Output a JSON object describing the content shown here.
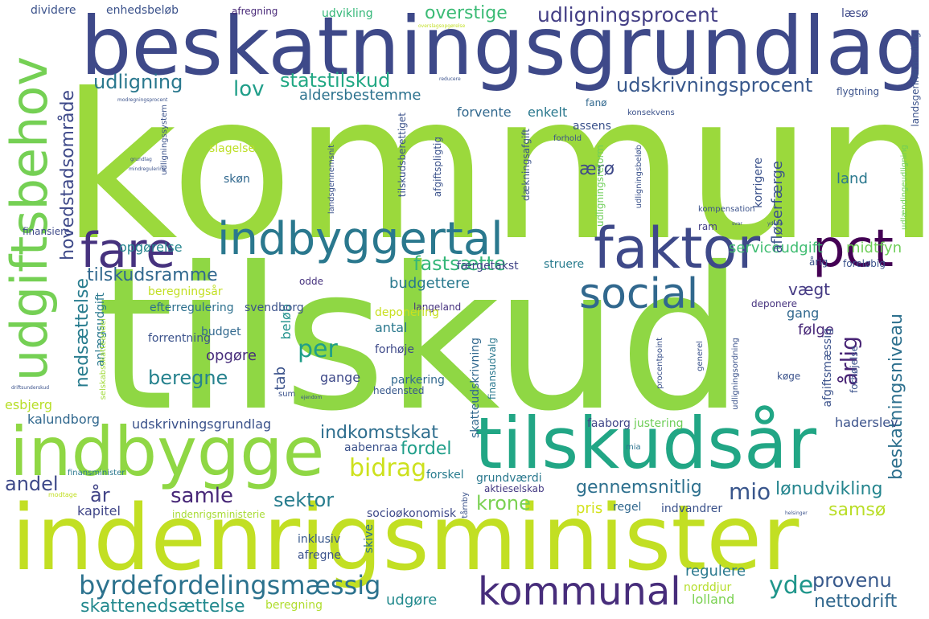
{
  "words": [
    {
      "text": "kommune",
      "color": "#9bd93c"
    },
    {
      "text": "tilskud",
      "color": "#8fd744"
    },
    {
      "text": "beskatningsgrundlag",
      "color": "#3e4989"
    },
    {
      "text": "indenrigsminister",
      "color": "#c2df23"
    },
    {
      "text": "indbygge",
      "color": "#8fd744"
    },
    {
      "text": "tilskudsår",
      "color": "#21a685"
    },
    {
      "text": "udgiftsbehov",
      "color": "#75d054"
    },
    {
      "text": "indbyggertal",
      "color": "#2a788e"
    },
    {
      "text": "faktor",
      "color": "#3e4989"
    },
    {
      "text": "fare",
      "color": "#46327e"
    },
    {
      "text": "pct",
      "color": "#440154"
    },
    {
      "text": "social",
      "color": "#31688e"
    },
    {
      "text": "kommunal",
      "color": "#472d7b"
    },
    {
      "text": "byrdefordelingsmæssig",
      "color": "#2c728e"
    },
    {
      "text": "udligningsprocent",
      "color": "#433e85"
    },
    {
      "text": "overstige",
      "color": "#3bbb75"
    },
    {
      "text": "udskrivningsprocent",
      "color": "#38588c"
    },
    {
      "text": "statstilskud",
      "color": "#22a884"
    },
    {
      "text": "udligning",
      "color": "#2a788e"
    },
    {
      "text": "lov",
      "color": "#1f9e89"
    },
    {
      "text": "aldersbestemme",
      "color": "#2c728e"
    },
    {
      "text": "forvente",
      "color": "#31688e"
    },
    {
      "text": "enkelt",
      "color": "#2a788e"
    },
    {
      "text": "hovedstadsområde",
      "color": "#3e4989"
    },
    {
      "text": "tilskudsramme",
      "color": "#31688e"
    },
    {
      "text": "fastsætte",
      "color": "#35b779"
    },
    {
      "text": "budgettere",
      "color": "#29798e"
    },
    {
      "text": "per",
      "color": "#1f9e89"
    },
    {
      "text": "beregne",
      "color": "#26828e"
    },
    {
      "text": "nedsættelse",
      "color": "#287c8e"
    },
    {
      "text": "bidrag",
      "color": "#cde11d"
    },
    {
      "text": "samle",
      "color": "#482878"
    },
    {
      "text": "andel",
      "color": "#3e4989"
    },
    {
      "text": "år",
      "color": "#414487"
    },
    {
      "text": "krone",
      "color": "#7ad151"
    },
    {
      "text": "mio",
      "color": "#39568c"
    },
    {
      "text": "lønudvikling",
      "color": "#25858e"
    },
    {
      "text": "gennemsnitlig",
      "color": "#2d708e"
    },
    {
      "text": "sektor",
      "color": "#287d8e"
    },
    {
      "text": "provenu",
      "color": "#38598c"
    },
    {
      "text": "yde",
      "color": "#1f968b"
    },
    {
      "text": "nettodrift",
      "color": "#31688e"
    },
    {
      "text": "skattenedsættelse",
      "color": "#23898e"
    },
    {
      "text": "beskatningsniveau",
      "color": "#2d708e"
    },
    {
      "text": "årlig",
      "color": "#482475"
    },
    {
      "text": "serviceudgift",
      "color": "#40bd72"
    },
    {
      "text": "midtfyn",
      "color": "#6ece58"
    },
    {
      "text": "indkomstskat",
      "color": "#2e6e8e"
    },
    {
      "text": "fordel",
      "color": "#1f9e89"
    },
    {
      "text": "udskrivningsgrundlag",
      "color": "#3b528b"
    },
    {
      "text": "samsø",
      "color": "#bade28"
    },
    {
      "text": "regulere",
      "color": "#2a788e"
    },
    {
      "text": "udgøre",
      "color": "#238a8d"
    },
    {
      "text": "lolland",
      "color": "#7ad151"
    },
    {
      "text": "norddjur",
      "color": "#b5de2b"
    },
    {
      "text": "opgørelse",
      "color": "#25858e"
    },
    {
      "text": "færgetakst",
      "color": "#414487"
    },
    {
      "text": "afløserfærge",
      "color": "#3b528b"
    },
    {
      "text": "land",
      "color": "#2a788e"
    },
    {
      "text": "ærø",
      "color": "#3e4989"
    },
    {
      "text": "skøn",
      "color": "#31688e"
    },
    {
      "text": "slagelse",
      "color": "#bddf26"
    },
    {
      "text": "assens",
      "color": "#3b528b"
    },
    {
      "text": "fanø",
      "color": "#31688e"
    },
    {
      "text": "struere",
      "color": "#287c8e"
    },
    {
      "text": "vægt",
      "color": "#443983"
    },
    {
      "text": "gang",
      "color": "#31688e"
    },
    {
      "text": "følge",
      "color": "#482878"
    },
    {
      "text": "tab",
      "color": "#3b528b"
    },
    {
      "text": "antal",
      "color": "#2a788e"
    },
    {
      "text": "gange",
      "color": "#3e4989"
    },
    {
      "text": "beløb",
      "color": "#21918c"
    },
    {
      "text": "budget",
      "color": "#31688e"
    },
    {
      "text": "opgøre",
      "color": "#472d7b"
    },
    {
      "text": "efterregulering",
      "color": "#2d708e"
    },
    {
      "text": "svendborg",
      "color": "#3b528b"
    },
    {
      "text": "langeland",
      "color": "#46327e"
    },
    {
      "text": "forrentning",
      "color": "#3b528b"
    },
    {
      "text": "forhøje",
      "color": "#3e4989"
    },
    {
      "text": "parkering",
      "color": "#31688e"
    },
    {
      "text": "hedensted",
      "color": "#38588c"
    },
    {
      "text": "kalundborg",
      "color": "#31688e"
    },
    {
      "text": "esbjerg",
      "color": "#b8de29"
    },
    {
      "text": "aabenraa",
      "color": "#3b528b"
    },
    {
      "text": "forskel",
      "color": "#287c8e"
    },
    {
      "text": "aktieselskab",
      "color": "#443983"
    },
    {
      "text": "grundværdi",
      "color": "#2a788e"
    },
    {
      "text": "kapitel",
      "color": "#404688"
    },
    {
      "text": "socioøkonomisk",
      "color": "#3e4989"
    },
    {
      "text": "regel",
      "color": "#31688e"
    },
    {
      "text": "indvandrer",
      "color": "#3b528b"
    },
    {
      "text": "pris",
      "color": "#d2e21b"
    },
    {
      "text": "indenrigsministerie",
      "color": "#a8db34"
    },
    {
      "text": "inklusiv",
      "color": "#38588c"
    },
    {
      "text": "afregne",
      "color": "#3b528b"
    },
    {
      "text": "skive",
      "color": "#2d708e"
    },
    {
      "text": "beregning",
      "color": "#b0dd2f"
    },
    {
      "text": "faaborg",
      "color": "#404688"
    },
    {
      "text": "justering",
      "color": "#6ece58"
    },
    {
      "text": "haderslev",
      "color": "#3b528b"
    },
    {
      "text": "mia",
      "color": "#2c728e"
    },
    {
      "text": "køge",
      "color": "#3b528b"
    },
    {
      "text": "dividere",
      "color": "#3b528b"
    },
    {
      "text": "enhedsbeløb",
      "color": "#3b528b"
    },
    {
      "text": "afregning",
      "color": "#482878"
    },
    {
      "text": "udvikling",
      "color": "#35b779"
    },
    {
      "text": "læsø",
      "color": "#3e4989"
    },
    {
      "text": "odde",
      "color": "#46327e"
    },
    {
      "text": "deponering",
      "color": "#c8e020"
    },
    {
      "text": "deponere",
      "color": "#46327e"
    },
    {
      "text": "beregningsår",
      "color": "#c2df23"
    },
    {
      "text": "finansiere",
      "color": "#3e4989"
    },
    {
      "text": "finansminister",
      "color": "#2a788e"
    },
    {
      "text": "årig",
      "color": "#3b528b"
    },
    {
      "text": "foreløbig",
      "color": "#3b528b"
    },
    {
      "text": "korrigere",
      "color": "#3b528b"
    },
    {
      "text": "ram",
      "color": "#433e85"
    },
    {
      "text": "kompensation",
      "color": "#3b528b"
    },
    {
      "text": "forhold",
      "color": "#3b528b"
    },
    {
      "text": "konsekvens",
      "color": "#3b528b"
    },
    {
      "text": "flygtning",
      "color": "#3b528b"
    },
    {
      "text": "anlægsudgift",
      "color": "#2a788e"
    },
    {
      "text": "afgiftsmæssig",
      "color": "#3b528b"
    },
    {
      "text": "forhøjelse",
      "color": "#3b528b"
    },
    {
      "text": "skatteudskrivning",
      "color": "#31688e"
    },
    {
      "text": "finansudvalg",
      "color": "#2a788e"
    },
    {
      "text": "generel",
      "color": "#3b528b"
    },
    {
      "text": "procentpoint",
      "color": "#3b528b"
    },
    {
      "text": "udligningsordning",
      "color": "#3b528b"
    },
    {
      "text": "landsgennemsnit",
      "color": "#3b528b"
    },
    {
      "text": "landsgennemsnitlig",
      "color": "#3b528b"
    },
    {
      "text": "udligningsreform",
      "color": "#6ece58"
    },
    {
      "text": "dækningsafgift",
      "color": "#3b528b"
    },
    {
      "text": "afgiftspligtig",
      "color": "#3b528b"
    },
    {
      "text": "tilskudsberettiget",
      "color": "#3b528b"
    },
    {
      "text": "udligningsbeløb",
      "color": "#3b528b"
    },
    {
      "text": "udligningssystem",
      "color": "#3b528b"
    },
    {
      "text": "driftsunderskud",
      "color": "#3b528b"
    },
    {
      "text": "selskabsskatteandel",
      "color": "#a0da39"
    },
    {
      "text": "tårnby",
      "color": "#3b528b"
    },
    {
      "text": "helsinger",
      "color": "#3b528b"
    },
    {
      "text": "sum",
      "color": "#3b528b"
    },
    {
      "text": "ejendom",
      "color": "#3b528b"
    },
    {
      "text": "modtage",
      "color": "#c2df23"
    },
    {
      "text": "udlændingeudligning",
      "color": "#6ece58"
    },
    {
      "text": "ydelse",
      "color": "#3b528b"
    },
    {
      "text": "svar",
      "color": "#3b528b"
    },
    {
      "text": "modregningsprocent",
      "color": "#3b528b"
    },
    {
      "text": "reducere",
      "color": "#3b528b"
    },
    {
      "text": "grundlag",
      "color": "#3b528b"
    },
    {
      "text": "mindregulering",
      "color": "#3b528b"
    },
    {
      "text": "overslagsopgørelse",
      "color": "#c2df23"
    }
  ]
}
